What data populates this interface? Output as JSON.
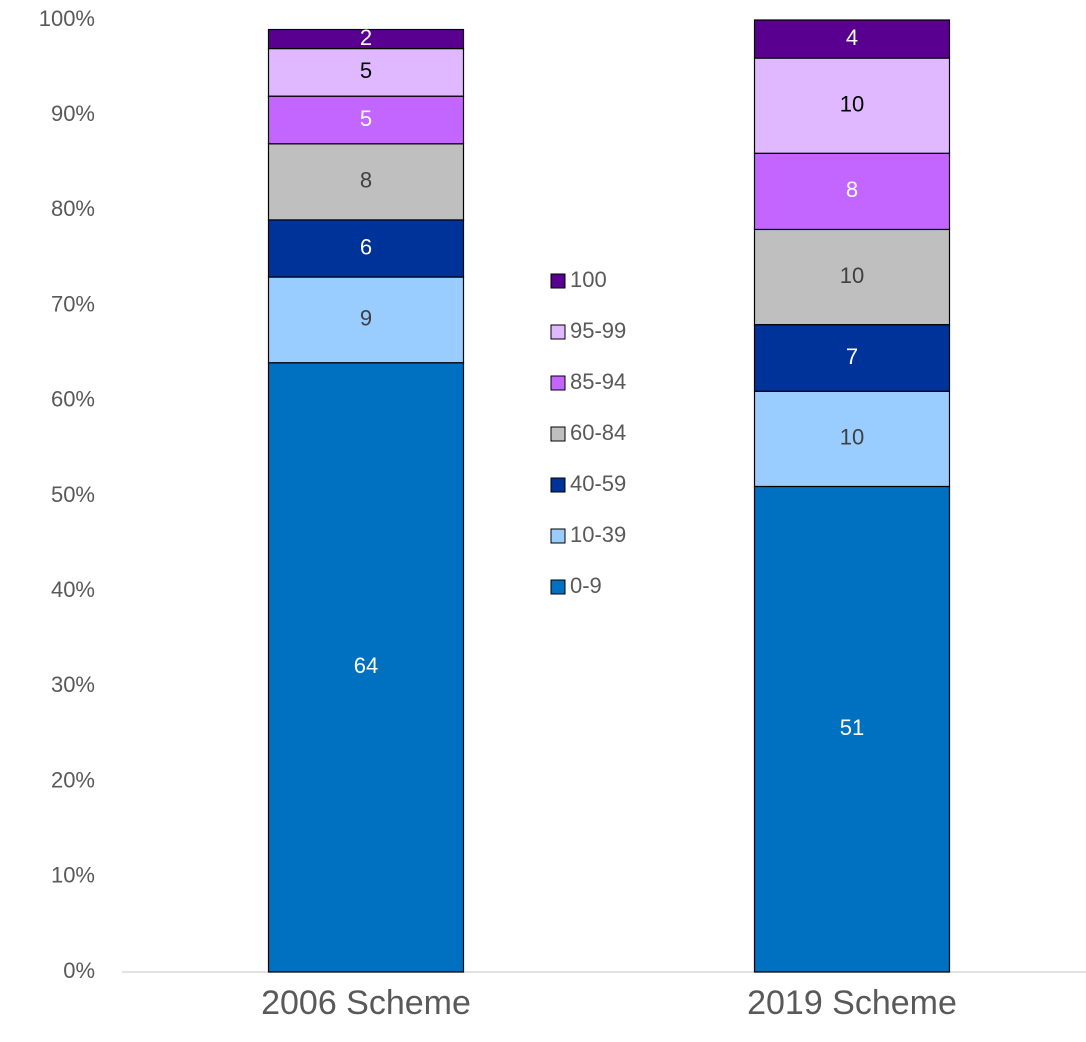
{
  "chart_data": {
    "type": "stacked_bar",
    "categories": [
      "2006 Scheme",
      "2019 Scheme"
    ],
    "series": [
      {
        "name": "0-9",
        "color": "#0070c0",
        "label_color": "#ffffff",
        "values": [
          64,
          51
        ]
      },
      {
        "name": "10-39",
        "color": "#99ccff",
        "label_color": "#404040",
        "values": [
          9,
          10
        ]
      },
      {
        "name": "40-59",
        "color": "#003399",
        "label_color": "#ffffff",
        "values": [
          6,
          7
        ]
      },
      {
        "name": "60-84",
        "color": "#bfbfbf",
        "label_color": "#404040",
        "values": [
          8,
          10
        ]
      },
      {
        "name": "85-94",
        "color": "#c266ff",
        "label_color": "#ffffff",
        "values": [
          5,
          8
        ]
      },
      {
        "name": "95-99",
        "color": "#e0b8ff",
        "label_color": "#000000",
        "values": [
          5,
          10
        ]
      },
      {
        "name": "100",
        "color": "#5a0090",
        "label_color": "#ffffff",
        "values": [
          2,
          4
        ]
      }
    ],
    "ylim": [
      0,
      100
    ],
    "yticks": [
      {
        "value": 0,
        "label": "0%"
      },
      {
        "value": 10,
        "label": "10%"
      },
      {
        "value": 20,
        "label": "20%"
      },
      {
        "value": 30,
        "label": "30%"
      },
      {
        "value": 40,
        "label": "40%"
      },
      {
        "value": 50,
        "label": "50%"
      },
      {
        "value": 60,
        "label": "60%"
      },
      {
        "value": 70,
        "label": "70%"
      },
      {
        "value": 80,
        "label": "80%"
      },
      {
        "value": 90,
        "label": "90%"
      },
      {
        "value": 100,
        "label": "100%"
      }
    ],
    "grid": false,
    "legend": "center"
  }
}
